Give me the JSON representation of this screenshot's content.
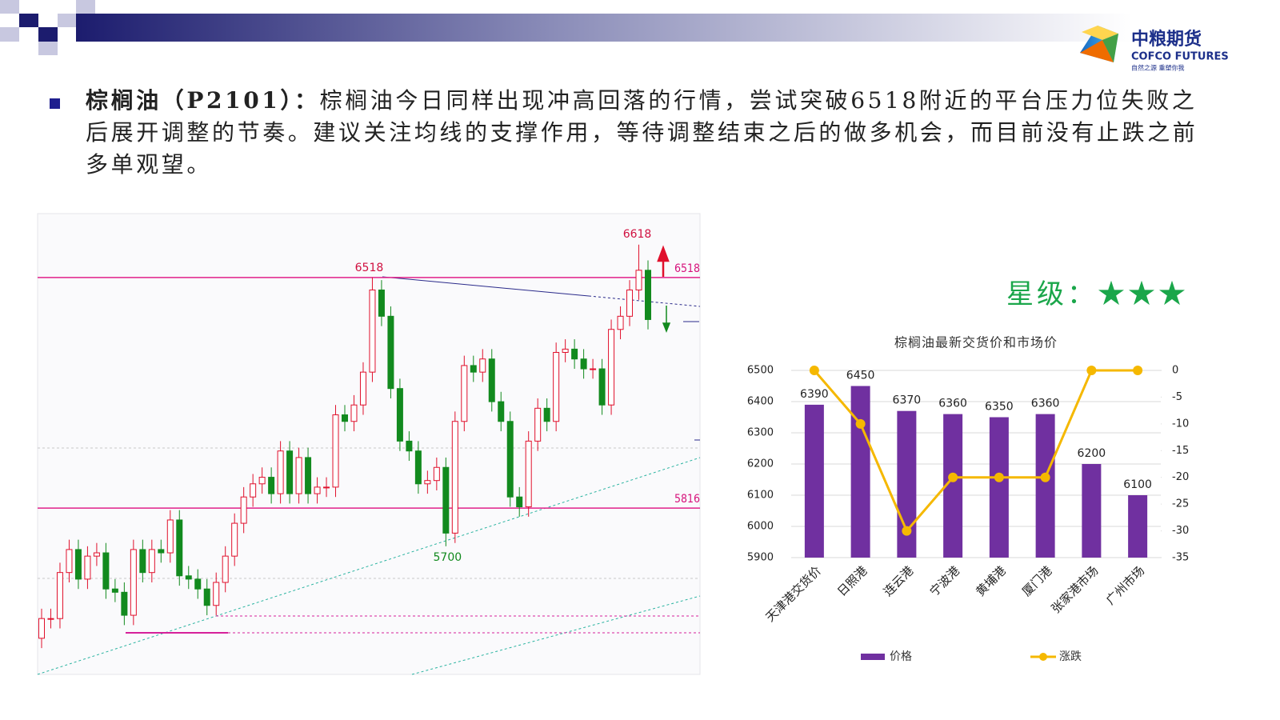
{
  "header": {
    "logo_cn": "中粮期货",
    "logo_en": "COFCO FUTURES",
    "slogan": "自然之源 重塑你我"
  },
  "bullet": {
    "term": "棕榈油（P2101）：",
    "text": "棕榈油今日同样出现冲高回落的行情，尝试突破6518附近的平台压力位失败之后展开调整的节奏。建议关注均线的支撑作用，等待调整结束之后的做多机会，而目前没有止跌之前多单观望。"
  },
  "rating": "星级：★★★",
  "chart_data": [
    {
      "type": "candlestick",
      "open": [
        5420,
        5480,
        5480,
        5620,
        5690,
        5600,
        5670,
        5680,
        5570,
        5560,
        5490,
        5690,
        5620,
        5690,
        5680,
        5780,
        5610,
        5600,
        5570,
        5520,
        5590,
        5670,
        5770,
        5850,
        5890,
        5910,
        5860,
        5990,
        5860,
        5970,
        5860,
        5880,
        5880,
        6100,
        6080,
        6130,
        6230,
        6480,
        6400,
        6180,
        6020,
        5990,
        5890,
        5900,
        5940,
        5740,
        6080,
        6250,
        6230,
        6270,
        6140,
        6080,
        5850,
        5820,
        6020,
        6120,
        6080,
        6290,
        6300,
        6270,
        6240,
        6240,
        6130,
        6360,
        6400,
        6480,
        6540
      ],
      "close": [
        5480,
        5480,
        5620,
        5690,
        5600,
        5670,
        5680,
        5570,
        5560,
        5490,
        5690,
        5620,
        5690,
        5680,
        5780,
        5610,
        5600,
        5570,
        5520,
        5590,
        5670,
        5770,
        5850,
        5890,
        5910,
        5860,
        5990,
        5860,
        5970,
        5860,
        5880,
        5880,
        6100,
        6080,
        6130,
        6230,
        6480,
        6400,
        6180,
        6020,
        5990,
        5890,
        5900,
        5940,
        5740,
        6080,
        6250,
        6230,
        6270,
        6140,
        6080,
        5850,
        5820,
        6020,
        6120,
        6080,
        6290,
        6300,
        6270,
        6240,
        6240,
        6130,
        6360,
        6400,
        6480,
        6540,
        6390
      ],
      "high": [
        5510,
        5510,
        5650,
        5720,
        5720,
        5700,
        5710,
        5710,
        5600,
        5590,
        5720,
        5720,
        5720,
        5720,
        5810,
        5810,
        5640,
        5630,
        5600,
        5620,
        5700,
        5800,
        5880,
        5920,
        5940,
        5940,
        6020,
        6020,
        6000,
        6000,
        5910,
        5910,
        6130,
        6130,
        6160,
        6260,
        6518,
        6510,
        6430,
        6210,
        6050,
        6020,
        5930,
        5970,
        5970,
        6110,
        6280,
        6280,
        6300,
        6300,
        6170,
        6110,
        5880,
        6050,
        6150,
        6150,
        6320,
        6330,
        6330,
        6300,
        6270,
        6270,
        6390,
        6430,
        6510,
        6618,
        6570
      ],
      "low": [
        5390,
        5450,
        5450,
        5590,
        5570,
        5570,
        5640,
        5540,
        5530,
        5460,
        5460,
        5590,
        5590,
        5650,
        5650,
        5580,
        5570,
        5540,
        5490,
        5490,
        5560,
        5640,
        5740,
        5820,
        5860,
        5830,
        5830,
        5830,
        5830,
        5830,
        5830,
        5850,
        5850,
        6050,
        6050,
        6100,
        6200,
        6370,
        6150,
        5990,
        5960,
        5860,
        5860,
        5870,
        5700,
        5710,
        6050,
        6200,
        6200,
        6110,
        6050,
        5820,
        5790,
        5790,
        5990,
        6050,
        6050,
        6260,
        6240,
        6210,
        6210,
        6100,
        6100,
        6330,
        6370,
        6450,
        6360
      ],
      "ylim": [
        5310,
        6710
      ],
      "hlines": [
        6518,
        5816
      ],
      "up_color": "#e0102c",
      "down_color": "#128a1e"
    },
    {
      "type": "bar",
      "title": "棕榈油最新交货价和市场价",
      "categories": [
        "天津港交货价",
        "日照港",
        "连云港",
        "宁波港",
        "黄埔港",
        "厦门港",
        "张家港市场",
        "广州市场"
      ],
      "series": [
        {
          "name": "价格",
          "type": "bar",
          "color": "#7030a0",
          "values": [
            6390,
            6450,
            6370,
            6360,
            6350,
            6360,
            6200,
            6100
          ]
        },
        {
          "name": "涨跌",
          "type": "line",
          "axis": "y2",
          "color": "#f5b800",
          "values": [
            0,
            -10,
            -30,
            -20,
            -20,
            -20,
            0,
            0
          ]
        }
      ],
      "ylim": [
        5900,
        6500
      ],
      "yticks": [
        5900,
        6000,
        6100,
        6200,
        6300,
        6400,
        6500
      ],
      "y2lim": [
        -35,
        0
      ],
      "y2ticks": [
        0,
        -5,
        -10,
        -15,
        -20,
        -25,
        -30,
        -35
      ],
      "legend": "bottom"
    }
  ]
}
